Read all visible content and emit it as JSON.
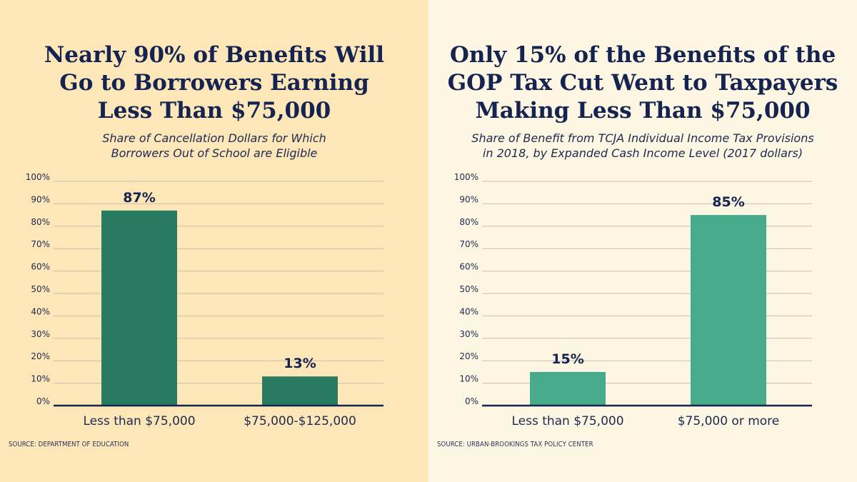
{
  "chart_data": [
    {
      "type": "bar",
      "title_lines": [
        "Nearly 90% of Benefits Will",
        "Go to Borrowers Earning",
        "Less Than $75,000"
      ],
      "subtitle_lines": [
        "Share of Cancellation Dollars for Which",
        "Borrowers Out of School are Eligible"
      ],
      "categories": [
        "Less than $75,000",
        "$75,000-$125,000"
      ],
      "values": [
        87,
        13
      ],
      "data_labels": [
        "87%",
        "13%"
      ],
      "ylim": [
        0,
        100
      ],
      "yticks": [
        0,
        10,
        20,
        30,
        40,
        50,
        60,
        70,
        80,
        90,
        100
      ],
      "ytick_labels": [
        "0%",
        "10%",
        "20%",
        "30%",
        "40%",
        "50%",
        "60%",
        "70%",
        "80%",
        "90%",
        "100%"
      ],
      "grid": true,
      "bar_color": "#287a60",
      "background": "#fde7b9",
      "source": "SOURCE: DEPARTMENT OF EDUCATION"
    },
    {
      "type": "bar",
      "title_lines": [
        "Only 15% of the Benefits of the",
        "GOP Tax Cut Went to Taxpayers",
        "Making Less Than $75,000"
      ],
      "subtitle_lines": [
        "Share of Benefit from TCJA Individual Income Tax Provisions",
        "in 2018, by Expanded Cash Income Level (2017 dollars)"
      ],
      "categories": [
        "Less than $75,000",
        "$75,000 or more"
      ],
      "values": [
        15,
        85
      ],
      "data_labels": [
        "15%",
        "85%"
      ],
      "ylim": [
        0,
        100
      ],
      "yticks": [
        0,
        10,
        20,
        30,
        40,
        50,
        60,
        70,
        80,
        90,
        100
      ],
      "ytick_labels": [
        "0%",
        "10%",
        "20%",
        "30%",
        "40%",
        "50%",
        "60%",
        "70%",
        "80%",
        "90%",
        "100%"
      ],
      "grid": true,
      "bar_color": "#47ab8b",
      "background": "#fdf6e3",
      "source": "SOURCE: URBAN-BROOKINGS TAX POLICY CENTER"
    }
  ],
  "colors": {
    "navy": "#14234f",
    "grid": "#c9c0ad",
    "axis": "#14234f"
  }
}
